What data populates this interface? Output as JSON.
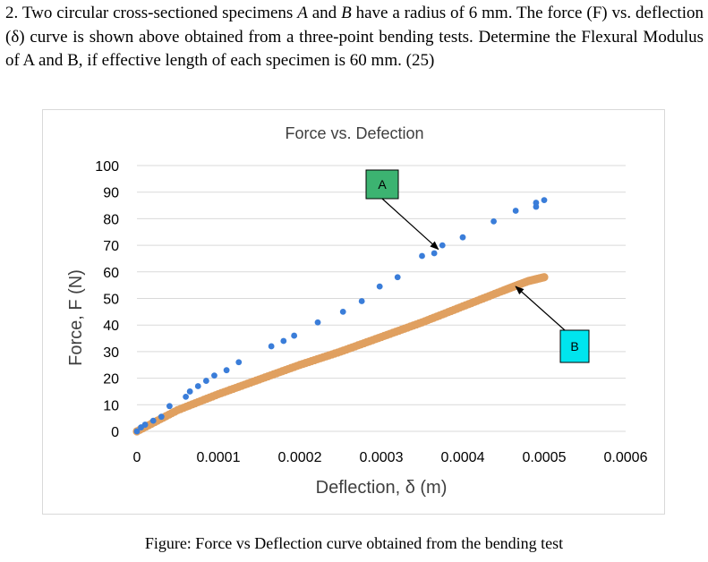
{
  "question": {
    "number": "2.",
    "part1": "Two circular cross-sectioned specimens",
    "spec_a": "A",
    "and": "and",
    "spec_b": "B",
    "part2": "have a radius of 6 mm. The force (F) vs. deflection (δ) curve is shown above obtained from a three-point bending tests. Determine the Flexural Modulus of A and B, if effective length of each specimen is 60 mm. (25)"
  },
  "caption": "Figure: Force vs Deflection curve obtained from the bending test",
  "colors": {
    "series_a": "#3a7dd9",
    "series_b": "#e0a060",
    "label_a_bg": "#3cb371",
    "label_b_bg": "#00e5ee",
    "grid": "#d9d9d9"
  },
  "chart_data": {
    "type": "scatter",
    "title": "Force vs. Defection",
    "xlabel": "Deflection, δ (m)",
    "ylabel": "Force, F (N)",
    "xlim": [
      0,
      0.0006
    ],
    "ylim": [
      0,
      100
    ],
    "x_ticks": [
      "0",
      "0.0001",
      "0.0002",
      "0.0003",
      "0.0004",
      "0.0005",
      "0.0006"
    ],
    "y_ticks": [
      "0",
      "10",
      "20",
      "30",
      "40",
      "50",
      "60",
      "70",
      "80",
      "90",
      "100"
    ],
    "grid": true,
    "series": [
      {
        "name": "A",
        "points": [
          [
            0.0,
            0
          ],
          [
            5e-06,
            1.5
          ],
          [
            1e-05,
            2.5
          ],
          [
            2e-05,
            4
          ],
          [
            3e-05,
            5.5
          ],
          [
            4e-05,
            9.5
          ],
          [
            6e-05,
            13
          ],
          [
            6.5e-05,
            15
          ],
          [
            7.5e-05,
            17
          ],
          [
            8.5e-05,
            19
          ],
          [
            9.5e-05,
            21
          ],
          [
            0.00011,
            23
          ],
          [
            0.000125,
            26
          ],
          [
            0.000165,
            32
          ],
          [
            0.00018,
            34
          ],
          [
            0.000193,
            36
          ],
          [
            0.000222,
            41
          ],
          [
            0.000253,
            45
          ],
          [
            0.000276,
            49
          ],
          [
            0.000298,
            54.5
          ],
          [
            0.00032,
            58
          ],
          [
            0.00035,
            66
          ],
          [
            0.000365,
            67
          ],
          [
            0.000375,
            70
          ],
          [
            0.0004,
            73
          ],
          [
            0.000438,
            79
          ],
          [
            0.000465,
            83
          ],
          [
            0.00049,
            84.5
          ],
          [
            0.00049,
            86
          ],
          [
            0.0005,
            87
          ]
        ]
      },
      {
        "name": "B",
        "points": [
          [
            0.0,
            0
          ],
          [
            5e-05,
            8
          ],
          [
            0.0001,
            14
          ],
          [
            0.00015,
            19.5
          ],
          [
            0.0002,
            25
          ],
          [
            0.00025,
            30
          ],
          [
            0.0003,
            35.5
          ],
          [
            0.00035,
            41
          ],
          [
            0.0004,
            47
          ],
          [
            0.00045,
            53
          ],
          [
            0.00048,
            56.5
          ],
          [
            0.0005,
            58
          ]
        ]
      }
    ],
    "annotations": [
      {
        "label": "A",
        "target": [
          0.00037,
          68.5
        ]
      },
      {
        "label": "B",
        "target": [
          0.000465,
          54.5
        ]
      }
    ]
  }
}
